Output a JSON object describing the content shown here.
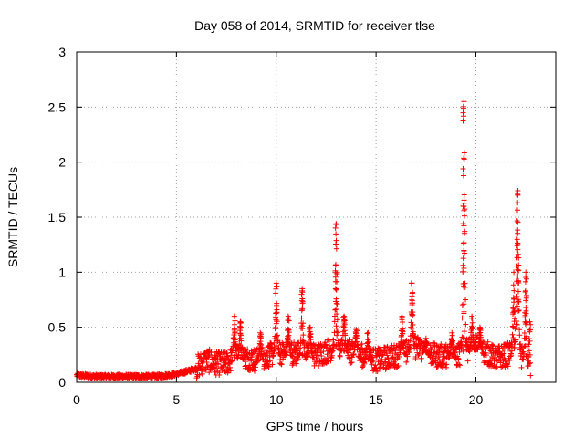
{
  "chart_data": {
    "type": "scatter",
    "title": "Day 058 of 2014, SRMTID for receiver tlse",
    "xlabel": "GPS time / hours",
    "ylabel": "SRMTID / TECUs",
    "xlim": [
      0,
      24
    ],
    "ylim": [
      0,
      3
    ],
    "x_ticks": [
      0,
      5,
      10,
      15,
      20
    ],
    "x_tick_labels": [
      "0",
      "5",
      "10",
      "15",
      "20"
    ],
    "y_ticks": [
      0,
      0.5,
      1,
      1.5,
      2,
      2.5,
      3
    ],
    "y_tick_labels": [
      "0",
      "0.5",
      "1",
      "1.5",
      "2",
      "2.5",
      "3"
    ],
    "grid": true,
    "marker": "+",
    "series": [
      {
        "name": "SRMTID",
        "color": "#ff0000",
        "baseline": [
          [
            0,
            0.06
          ],
          [
            1,
            0.05
          ],
          [
            2,
            0.05
          ],
          [
            3,
            0.05
          ],
          [
            4,
            0.05
          ],
          [
            5,
            0.07
          ],
          [
            6,
            0.12
          ],
          [
            6.5,
            0.18
          ],
          [
            7,
            0.15
          ],
          [
            7.5,
            0.15
          ],
          [
            8,
            0.22
          ],
          [
            9,
            0.18
          ],
          [
            10,
            0.25
          ],
          [
            11,
            0.24
          ],
          [
            12,
            0.22
          ],
          [
            13,
            0.3
          ],
          [
            14,
            0.24
          ],
          [
            15,
            0.18
          ],
          [
            16,
            0.22
          ],
          [
            17,
            0.3
          ],
          [
            18,
            0.22
          ],
          [
            19,
            0.22
          ],
          [
            20,
            0.3
          ],
          [
            21,
            0.2
          ],
          [
            22,
            0.25
          ],
          [
            22.4,
            0.2
          ],
          [
            22.7,
            0.05
          ]
        ],
        "peaks": [
          [
            7.9,
            0.6
          ],
          [
            8.2,
            0.55
          ],
          [
            9.2,
            0.45
          ],
          [
            10.0,
            0.9
          ],
          [
            10.6,
            0.6
          ],
          [
            11.3,
            0.85
          ],
          [
            11.7,
            0.5
          ],
          [
            13.0,
            1.44
          ],
          [
            13.4,
            0.6
          ],
          [
            14.0,
            0.48
          ],
          [
            14.6,
            0.45
          ],
          [
            16.3,
            0.6
          ],
          [
            16.8,
            0.9
          ],
          [
            17.5,
            0.4
          ],
          [
            18.8,
            0.45
          ],
          [
            19.4,
            2.55
          ],
          [
            19.8,
            0.6
          ],
          [
            20.2,
            0.5
          ],
          [
            21.9,
            1.0
          ],
          [
            22.1,
            1.74
          ],
          [
            22.5,
            1.0
          ],
          [
            22.7,
            0.55
          ]
        ]
      }
    ]
  }
}
